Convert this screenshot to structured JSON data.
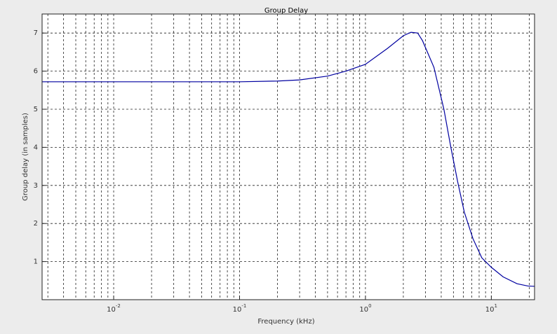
{
  "chart_data": {
    "type": "line",
    "title": "Group Delay",
    "x_label": "Frequency (kHz)",
    "y_label": "Group delay (in samples)",
    "x": [
      0.0027,
      0.01,
      0.05,
      0.1,
      0.2,
      0.3,
      0.5,
      0.7,
      1.0,
      1.5,
      2.0,
      2.3,
      2.6,
      2.84,
      3.5,
      4.2,
      4.77,
      5.4,
      6.1,
      7.15,
      8.4,
      10,
      12.4,
      16,
      19.5,
      22.05
    ],
    "series": [
      {
        "name": "Group delay",
        "color": "#0000a0",
        "values": [
          5.72,
          5.72,
          5.72,
          5.72,
          5.74,
          5.77,
          5.87,
          6.0,
          6.18,
          6.6,
          6.93,
          7.02,
          7.0,
          6.8,
          6.1,
          5.0,
          4.0,
          3.1,
          2.3,
          1.6,
          1.1,
          0.85,
          0.6,
          0.42,
          0.36,
          0.35
        ]
      }
    ],
    "xlim": [
      0.0027,
      22.05
    ],
    "ylim": [
      0,
      7.5
    ],
    "x_scale": "log",
    "grid": true,
    "minor_grid": true,
    "xticks": [
      {
        "value": 0.01,
        "label": "10",
        "exponent": "-2"
      },
      {
        "value": 0.1,
        "label": "10",
        "exponent": "-1"
      },
      {
        "value": 1,
        "label": "10",
        "exponent": "0"
      },
      {
        "value": 10,
        "label": "10",
        "exponent": "1"
      }
    ],
    "yticks": [
      1,
      2,
      3,
      4,
      5,
      6,
      7
    ]
  }
}
